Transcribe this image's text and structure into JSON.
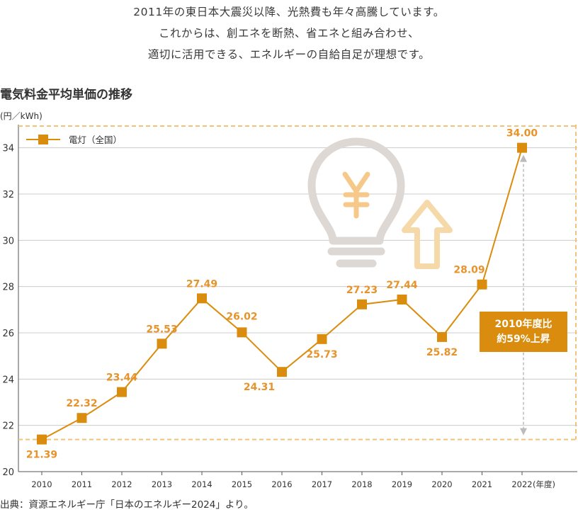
{
  "intro": {
    "lines": [
      "2011年の東日本大震災以降、光熱費も年々高騰しています。",
      "これからは、創エネを断熱、省エネと組み合わせ、",
      "適切に活用できる、エネルギーの自給自足が理想です。"
    ]
  },
  "chart_title": "電気料金平均単価の推移",
  "unit_label": "(円／kWh)",
  "source": "出典：資源エネルギー庁「日本のエネルギー2024」より。",
  "callout": {
    "line1": "2010年度比",
    "line2": "約59%上昇"
  },
  "colors": {
    "line": "#d98c0d",
    "label": "#e8932a",
    "grid": "#cccccc",
    "dashed": "#f0c27a",
    "icon": "#ddd8d4",
    "arrow_icon": "#f6d9a8",
    "yen": "#f6c98a"
  },
  "icons": [
    "light-bulb-icon",
    "yen-icon",
    "up-arrow-icon"
  ],
  "chart_data": {
    "type": "line",
    "title": "電気料金平均単価の推移",
    "ylabel": "(円／kWh)",
    "xlabel": "",
    "x_suffix_label": "(年度)",
    "ylim": [
      20,
      35
    ],
    "yticks": [
      20,
      22,
      24,
      26,
      28,
      30,
      32,
      34
    ],
    "grid": true,
    "legend_position": "top-left",
    "categories": [
      "2010",
      "2011",
      "2012",
      "2013",
      "2014",
      "2015",
      "2016",
      "2017",
      "2018",
      "2019",
      "2020",
      "2021",
      "2022"
    ],
    "series": [
      {
        "name": "電灯（全国）",
        "values": [
          21.39,
          22.32,
          23.44,
          25.53,
          27.49,
          26.02,
          24.31,
          25.73,
          27.23,
          27.44,
          25.82,
          28.09,
          34.0
        ],
        "labels": [
          "21.39",
          "22.32",
          "23.44",
          "25.53",
          "27.49",
          "26.02",
          "24.31",
          "25.73",
          "27.23",
          "27.44",
          "25.82",
          "28.09",
          "34.00"
        ]
      }
    ]
  }
}
